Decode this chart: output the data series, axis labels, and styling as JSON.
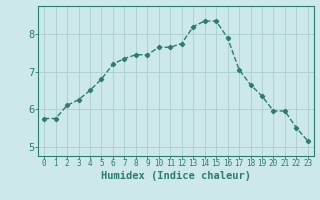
{
  "x": [
    0,
    1,
    2,
    3,
    4,
    5,
    6,
    7,
    8,
    9,
    10,
    11,
    12,
    13,
    14,
    15,
    16,
    17,
    18,
    19,
    20,
    21,
    22,
    23
  ],
  "y": [
    5.75,
    5.75,
    6.1,
    6.25,
    6.5,
    6.8,
    7.2,
    7.35,
    7.45,
    7.45,
    7.65,
    7.65,
    7.75,
    8.2,
    8.35,
    8.35,
    7.9,
    7.05,
    6.65,
    6.35,
    5.95,
    5.95,
    5.5,
    5.15
  ],
  "line_color": "#2d7d6e",
  "marker": "D",
  "marker_size": 2.2,
  "bg_color": "#cce8e8",
  "grid_color": "#aacfcf",
  "xlabel": "Humidex (Indice chaleur)",
  "xlim": [
    -0.5,
    23.5
  ],
  "ylim": [
    4.75,
    8.75
  ],
  "yticks": [
    5,
    6,
    7,
    8
  ],
  "xticks": [
    0,
    1,
    2,
    3,
    4,
    5,
    6,
    7,
    8,
    9,
    10,
    11,
    12,
    13,
    14,
    15,
    16,
    17,
    18,
    19,
    20,
    21,
    22,
    23
  ],
  "tick_fontsize": 5.5,
  "xlabel_fontsize": 7.5,
  "ytick_fontsize": 7.5,
  "axis_color": "#2d7d6e",
  "line_width": 1.0
}
